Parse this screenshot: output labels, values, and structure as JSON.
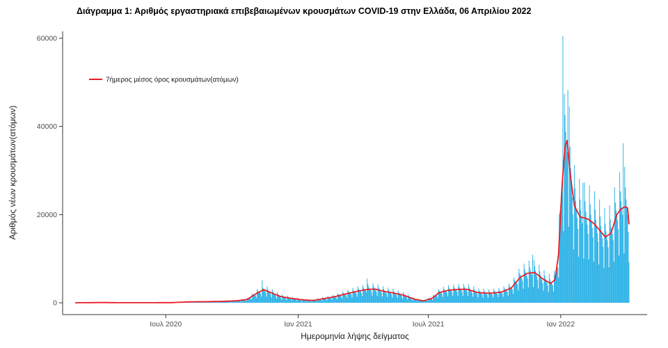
{
  "chart_data": {
    "type": "bar",
    "title": "Διάγραμμα 1: Αριθμός εργαστηριακά επιβεβαιωμένων κρουσμάτων COVID-19 στην Ελλάδα, 06 Απριλίου 2022",
    "xlabel": "Ημερομηνία λήψης δείγματος",
    "ylabel": "Αριθμός νέων κρουσμάτων(ατόμων)",
    "legend": [
      {
        "label": "7ήμερος μέσος όρος κρουσμάτων(ατόμων)",
        "color": "#ed1c24",
        "type": "line"
      }
    ],
    "colors": {
      "bars": "#35b5e8",
      "line": "#ed1c24",
      "axis": "#333333"
    },
    "ylim": [
      0,
      60000
    ],
    "yticks": [
      0,
      20000,
      40000,
      60000
    ],
    "xticks": [
      {
        "date": "2020-07-01",
        "label": "Ιουλ 2020"
      },
      {
        "date": "2021-01-01",
        "label": "Ιαν 2021"
      },
      {
        "date": "2021-07-01",
        "label": "Ιουλ 2021"
      },
      {
        "date": "2022-01-01",
        "label": "Ιαν 2022"
      }
    ],
    "date_range": [
      "2020-02-26",
      "2022-04-06"
    ],
    "grid": false,
    "legend_position": "inside-top-left",
    "avg_points": [
      [
        "2020-02-26",
        2
      ],
      [
        "2020-03-20",
        35
      ],
      [
        "2020-04-05",
        55
      ],
      [
        "2020-04-25",
        20
      ],
      [
        "2020-05-20",
        10
      ],
      [
        "2020-06-15",
        20
      ],
      [
        "2020-07-10",
        40
      ],
      [
        "2020-08-05",
        220
      ],
      [
        "2020-08-30",
        250
      ],
      [
        "2020-09-20",
        330
      ],
      [
        "2020-10-08",
        450
      ],
      [
        "2020-10-22",
        750
      ],
      [
        "2020-11-03",
        2000
      ],
      [
        "2020-11-14",
        2950
      ],
      [
        "2020-11-24",
        2300
      ],
      [
        "2020-12-08",
        1400
      ],
      [
        "2020-12-22",
        1000
      ],
      [
        "2021-01-08",
        650
      ],
      [
        "2021-01-22",
        520
      ],
      [
        "2021-02-06",
        950
      ],
      [
        "2021-02-20",
        1350
      ],
      [
        "2021-03-08",
        2000
      ],
      [
        "2021-03-24",
        2600
      ],
      [
        "2021-04-08",
        3050
      ],
      [
        "2021-04-18",
        3100
      ],
      [
        "2021-04-30",
        2600
      ],
      [
        "2021-05-14",
        2200
      ],
      [
        "2021-05-28",
        1700
      ],
      [
        "2021-06-12",
        800
      ],
      [
        "2021-06-24",
        430
      ],
      [
        "2021-07-06",
        1000
      ],
      [
        "2021-07-16",
        2300
      ],
      [
        "2021-07-28",
        2800
      ],
      [
        "2021-08-12",
        3050
      ],
      [
        "2021-08-24",
        3050
      ],
      [
        "2021-09-08",
        2300
      ],
      [
        "2021-09-24",
        2150
      ],
      [
        "2021-10-10",
        2400
      ],
      [
        "2021-10-24",
        3300
      ],
      [
        "2021-11-06",
        5800
      ],
      [
        "2021-11-16",
        6700
      ],
      [
        "2021-11-26",
        6850
      ],
      [
        "2021-12-08",
        5300
      ],
      [
        "2021-12-18",
        4400
      ],
      [
        "2021-12-24",
        5200
      ],
      [
        "2021-12-29",
        11000
      ],
      [
        "2022-01-03",
        27000
      ],
      [
        "2022-01-07",
        35500
      ],
      [
        "2022-01-10",
        36800
      ],
      [
        "2022-01-14",
        29500
      ],
      [
        "2022-01-20",
        22000
      ],
      [
        "2022-01-28",
        19500
      ],
      [
        "2022-02-08",
        19000
      ],
      [
        "2022-02-16",
        18000
      ],
      [
        "2022-02-24",
        16500
      ],
      [
        "2022-03-04",
        14900
      ],
      [
        "2022-03-12",
        15800
      ],
      [
        "2022-03-20",
        20000
      ],
      [
        "2022-03-26",
        21300
      ],
      [
        "2022-04-01",
        21800
      ],
      [
        "2022-04-04",
        21500
      ],
      [
        "2022-04-06",
        17800
      ]
    ],
    "weekly_pattern": [
      0.52,
      1.42,
      1.2,
      1.08,
      1.0,
      0.93,
      0.82
    ],
    "daily_overrides": {
      "2020-11-12": 5100,
      "2021-04-07": 5500,
      "2021-11-23": 10900,
      "2022-01-04": 60500,
      "2022-01-11": 48300,
      "2022-02-01": 27200,
      "2022-03-29": 36200
    }
  }
}
